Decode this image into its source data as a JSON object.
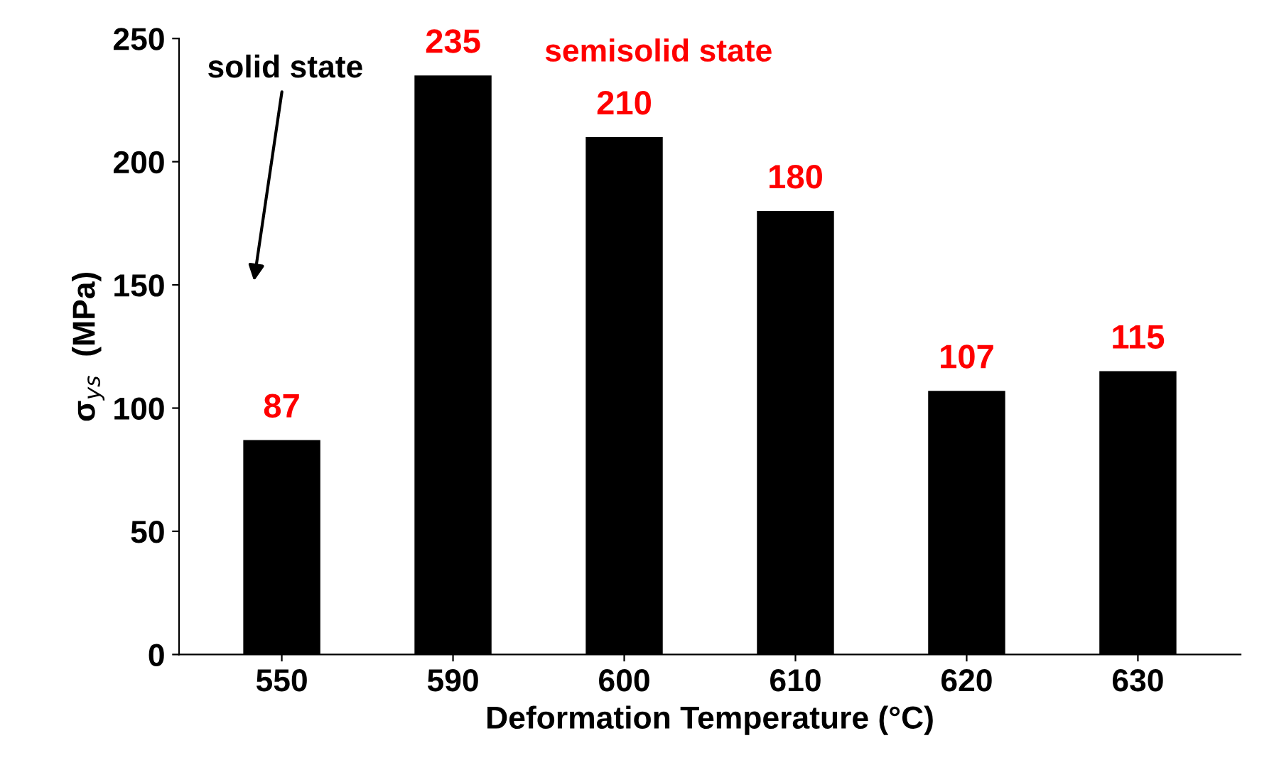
{
  "chart_data": {
    "type": "bar",
    "xlabel": "Deformation Temperature (°C)",
    "ylabel": "σ$_{ys}$  (MPa)",
    "categories": [
      "550",
      "590",
      "600",
      "610",
      "620",
      "630"
    ],
    "values": [
      87,
      235,
      210,
      180,
      107,
      115
    ],
    "color": "#000000",
    "ylim": [
      0,
      250
    ],
    "yticks": [
      0,
      50,
      100,
      150,
      200,
      250
    ],
    "grid": false,
    "data_labels": true,
    "annotations": [
      "solid state",
      "semisolid state"
    ]
  }
}
